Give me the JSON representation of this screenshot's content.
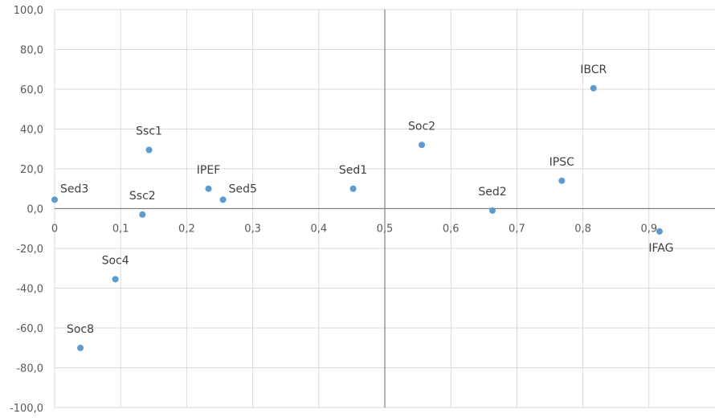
{
  "chart_data": {
    "type": "scatter",
    "title": "",
    "xlabel": "",
    "ylabel": "",
    "xlim": [
      0,
      1.0
    ],
    "ylim": [
      -100,
      100
    ],
    "x_ticks": [
      0,
      0.1,
      0.2,
      0.3,
      0.4,
      0.5,
      0.6,
      0.7,
      0.8,
      0.9
    ],
    "x_tick_labels": [
      "0",
      "0,1",
      "0,2",
      "0,3",
      "0,4",
      "0,5",
      "0,6",
      "0,7",
      "0,8",
      "0,9"
    ],
    "y_ticks": [
      100,
      80,
      60,
      40,
      20,
      0,
      -20,
      -40,
      -60,
      -80,
      -100
    ],
    "y_tick_labels": [
      "100,0",
      "80,0",
      "60,0",
      "40,0",
      "20,0",
      "0,0",
      "-20,0",
      "-40,0",
      "-60,0",
      "-80,0",
      "-100,0"
    ],
    "reference_lines": {
      "vertical_x": 0.5,
      "horizontal_y": 0
    },
    "grid": true,
    "legend": "none",
    "marker_color": "#5b9bd5",
    "points": [
      {
        "label": "Sed3",
        "x": 0.0,
        "y": 4.5,
        "label_pos": "right-above"
      },
      {
        "label": "Ssc1",
        "x": 0.143,
        "y": 29.5,
        "label_pos": "above"
      },
      {
        "label": "Ssc2",
        "x": 0.133,
        "y": -3.0,
        "label_pos": "above"
      },
      {
        "label": "Soc4",
        "x": 0.092,
        "y": -35.5,
        "label_pos": "above"
      },
      {
        "label": "Soc8",
        "x": 0.039,
        "y": -70.0,
        "label_pos": "above"
      },
      {
        "label": "IPEF",
        "x": 0.233,
        "y": 10.0,
        "label_pos": "above"
      },
      {
        "label": "Sed5",
        "x": 0.255,
        "y": 4.5,
        "label_pos": "right-above"
      },
      {
        "label": "Sed1",
        "x": 0.452,
        "y": 10.0,
        "label_pos": "above"
      },
      {
        "label": "Soc2",
        "x": 0.556,
        "y": 32.0,
        "label_pos": "above"
      },
      {
        "label": "Sed2",
        "x": 0.663,
        "y": -1.0,
        "label_pos": "above"
      },
      {
        "label": "IPSC",
        "x": 0.768,
        "y": 14.0,
        "label_pos": "above"
      },
      {
        "label": "IBCR",
        "x": 0.816,
        "y": 60.5,
        "label_pos": "above"
      },
      {
        "label": "IFAG",
        "x": 0.916,
        "y": -11.5,
        "label_pos": "below"
      }
    ]
  }
}
